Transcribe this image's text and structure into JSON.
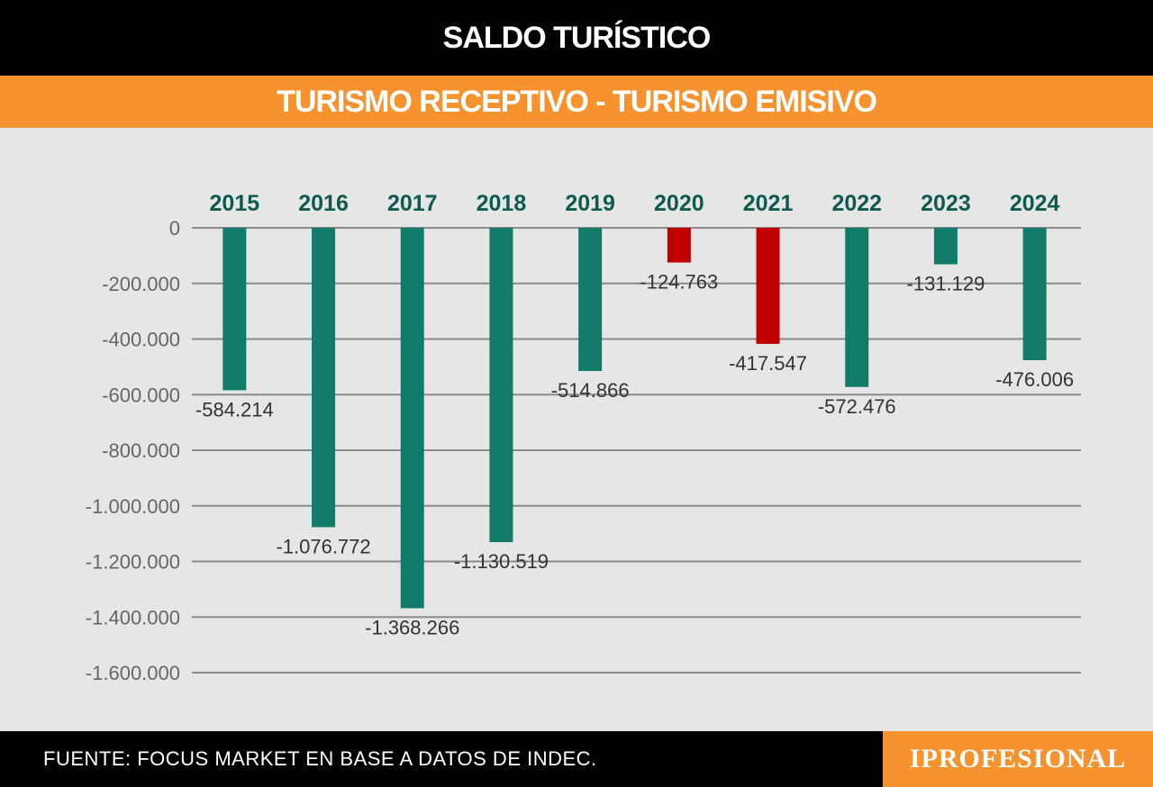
{
  "header": {
    "title": "SALDO TURÍSTICO",
    "subtitle": "TURISMO RECEPTIVO - TURISMO EMISIVO"
  },
  "footer": {
    "source": "FUENTE: FOCUS MARKET EN BASE A DATOS DE INDEC.",
    "brand": "IPROFESIONAL"
  },
  "colors": {
    "bar_default": "#127a68",
    "bar_highlight": "#c00000",
    "year_label": "#0f5a4e",
    "grid": "#8a8a8a",
    "tick_label": "#666666",
    "value_label": "#333333"
  },
  "chart_data": {
    "type": "bar",
    "categories": [
      "2015",
      "2016",
      "2017",
      "2018",
      "2019",
      "2020",
      "2021",
      "2022",
      "2023",
      "2024"
    ],
    "values": [
      -584214,
      -1076772,
      -1368266,
      -1130519,
      -514866,
      -124763,
      -417547,
      -572476,
      -131129,
      -476006
    ],
    "value_labels": [
      "-584.214",
      "-1.076.772",
      "-1.368.266",
      "-1.130.519",
      "-514.866",
      "-124.763",
      "-417.547",
      "-572.476",
      "-131.129",
      "-476.006"
    ],
    "highlighted": [
      "2020",
      "2021"
    ],
    "yticks": [
      0,
      -200000,
      -400000,
      -600000,
      -800000,
      -1000000,
      -1200000,
      -1400000,
      -1600000
    ],
    "ytick_labels": [
      "0",
      "-200.000",
      "-400.000",
      "-600.000",
      "-800.000",
      "-1.000.000",
      "-1.200.000",
      "-1.400.000",
      "-1.600.000"
    ],
    "ylim": [
      -1600000,
      0
    ],
    "grid": true,
    "category_position": "top"
  }
}
